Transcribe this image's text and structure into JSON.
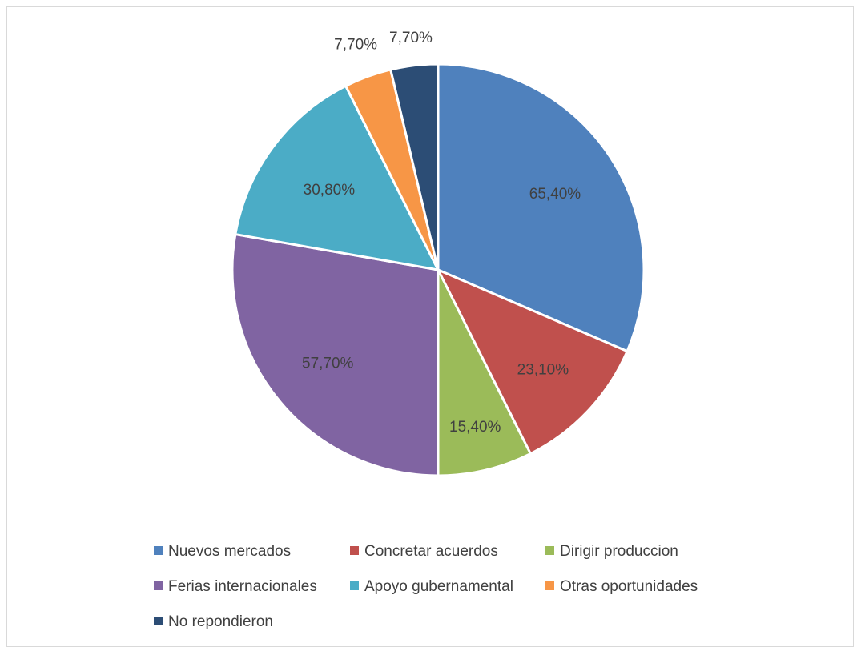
{
  "chart_data": {
    "type": "pie",
    "title": "",
    "slices": [
      {
        "label": "Nuevos mercados",
        "value": 65.4,
        "display": "65,40%",
        "color": "#4F81BD"
      },
      {
        "label": "Concretar acuerdos",
        "value": 23.1,
        "display": "23,10%",
        "color": "#C0504D"
      },
      {
        "label": "Dirigir produccion",
        "value": 15.4,
        "display": "15,40%",
        "color": "#9BBB59"
      },
      {
        "label": "Ferias internacionales",
        "value": 57.7,
        "display": "57,70%",
        "color": "#8064A2"
      },
      {
        "label": "Apoyo gubernamental",
        "value": 30.8,
        "display": "30,80%",
        "color": "#4BACC6"
      },
      {
        "label": "Otras oportunidades",
        "value": 7.7,
        "display": "7,70%",
        "color": "#F79646"
      },
      {
        "label": "No repondieron",
        "value": 7.7,
        "display": "7,70%",
        "color": "#2C4D75"
      }
    ],
    "legend_position": "bottom"
  }
}
